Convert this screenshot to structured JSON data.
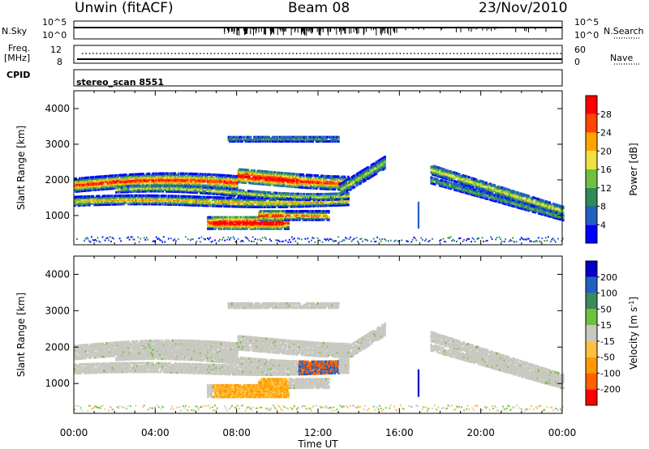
{
  "header": {
    "station": "Unwin (fitACF)",
    "beam": "Beam 08",
    "date": "23/Nov/2010"
  },
  "top_panels": {
    "nsky_label": "N.Sky",
    "nsky_ticks": [
      "10^5",
      "10^0"
    ],
    "nsearch_label": "N.Search",
    "nsearch_ticks": [
      "10^5",
      "10^0"
    ],
    "freq_label": "Freq.",
    "freq_unit": "[MHz]",
    "freq_ticks": [
      "12",
      "8"
    ],
    "nave_label": "Nave",
    "nave_ticks": [
      "60",
      "0"
    ],
    "cpid_label": "CPID",
    "cpid_value": "stereo_scan 8551"
  },
  "chart_data": [
    {
      "type": "heatmap",
      "name": "power",
      "ylabel": "Slant Range [km]",
      "ylim": [
        180,
        4500
      ],
      "yticks": [
        1000,
        2000,
        3000,
        4000
      ],
      "xlim": [
        0,
        24
      ],
      "colorbar": {
        "label": "Power [dB]",
        "ticks": [
          "28",
          "24",
          "20",
          "16",
          "12",
          "8",
          "4"
        ],
        "colors": [
          "#0000ff",
          "#2060c0",
          "#2e8b57",
          "#70c040",
          "#f0e040",
          "#ffa500",
          "#ff4500",
          "#ff0000"
        ]
      }
    },
    {
      "type": "heatmap",
      "name": "velocity",
      "ylabel": "Slant Range [km]",
      "ylim": [
        180,
        4500
      ],
      "yticks": [
        1000,
        2000,
        3000,
        4000
      ],
      "xlim": [
        0,
        24
      ],
      "xlabel": "Time UT",
      "xticks": [
        "00:00",
        "04:00",
        "08:00",
        "12:00",
        "16:00",
        "20:00",
        "00:00"
      ],
      "colorbar": {
        "label": "Velocity [m s^-1]",
        "ticks": [
          "200",
          "100",
          "50",
          "15",
          "-15",
          "-50",
          "-100",
          "-200"
        ],
        "colors": [
          "#ff0000",
          "#ff6000",
          "#ff9a00",
          "#ffc040",
          "#c8c8c0",
          "#70c040",
          "#3a8a5a",
          "#2060c0",
          "#0000c8"
        ]
      }
    }
  ]
}
